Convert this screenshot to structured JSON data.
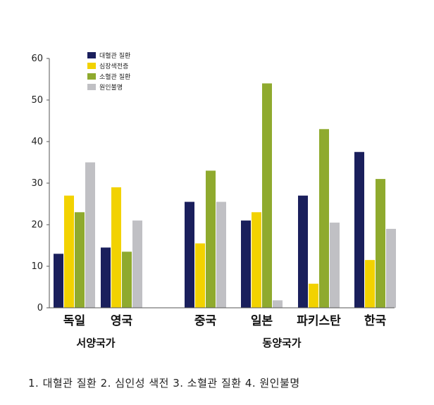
{
  "chart_data": {
    "type": "bar",
    "categories": [
      "독일",
      "영국",
      "중국",
      "일본",
      "파키스탄",
      "한국"
    ],
    "groups": [
      {
        "label": "서양국가",
        "categories": [
          "독일",
          "영국"
        ]
      },
      {
        "label": "동양국가",
        "categories": [
          "중국",
          "일본",
          "파키스탄",
          "한국"
        ]
      }
    ],
    "series": [
      {
        "name": "대혈관 질환",
        "color": "#1a1f5c",
        "values": [
          13,
          14.5,
          25.5,
          21,
          27,
          37.5
        ]
      },
      {
        "name": "심장색전증",
        "color": "#f2d200",
        "values": [
          27,
          29,
          15.5,
          23,
          5.8,
          11.5
        ]
      },
      {
        "name": "소혈관 질환",
        "color": "#8faa2e",
        "values": [
          23,
          13.5,
          33,
          54,
          43,
          31
        ]
      },
      {
        "name": "원인불명",
        "color": "#c0c0c4",
        "values": [
          35,
          21,
          25.5,
          1.8,
          20.5,
          19
        ]
      }
    ],
    "yticks": [
      0,
      10,
      20,
      30,
      40,
      50,
      60
    ],
    "ylim": [
      0,
      60
    ],
    "legend_position": "top-left",
    "grid": false
  },
  "footnote": "1. 대혈관 질환  2. 심인성 색전 3. 소혈관 질환 4. 원인불명"
}
